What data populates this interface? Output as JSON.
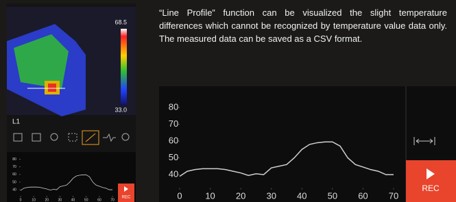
{
  "description": "“Line Profile” function can be visualized the slight temperature differences which cannot be recognized by temperature value data only. The measured data can be saved as a CSV format.",
  "thermal": {
    "max_label": "68.5",
    "min_label": "33.0",
    "line_label": "L1"
  },
  "rec_label": "REC",
  "chart_data": {
    "type": "line",
    "x": [
      0,
      2.5,
      5,
      7.5,
      10,
      12.5,
      15,
      17.5,
      20,
      22.5,
      25,
      27.5,
      30,
      32.5,
      35,
      37.5,
      40,
      42.5,
      45,
      47.5,
      50,
      52.5,
      55,
      57.5,
      60,
      62.5,
      65,
      67.5,
      70
    ],
    "values": [
      39,
      42,
      43,
      43.5,
      43.5,
      43.5,
      43,
      42,
      41,
      39.5,
      40.5,
      40,
      44,
      45,
      46,
      50,
      55,
      58,
      59,
      59.5,
      59.5,
      57,
      50,
      46,
      44.5,
      43,
      42,
      40,
      40
    ],
    "color": "#d0d0d0",
    "xlim": [
      0,
      70
    ],
    "ylim": [
      32,
      84
    ],
    "xticks": [
      0,
      10,
      20,
      30,
      40,
      50,
      60,
      70
    ],
    "yticks": [
      40,
      50,
      60,
      70,
      80
    ]
  }
}
